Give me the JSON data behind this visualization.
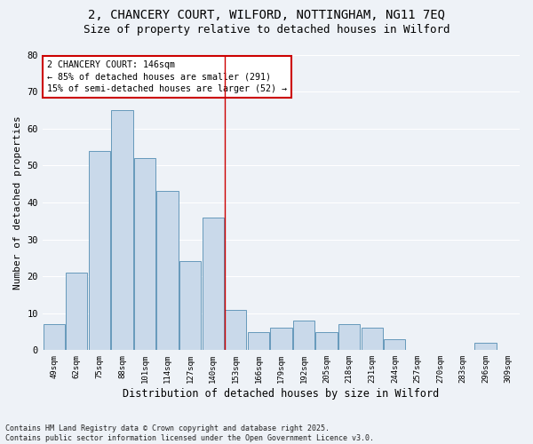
{
  "title": "2, CHANCERY COURT, WILFORD, NOTTINGHAM, NG11 7EQ",
  "subtitle": "Size of property relative to detached houses in Wilford",
  "xlabel": "Distribution of detached houses by size in Wilford",
  "ylabel": "Number of detached properties",
  "categories": [
    "49sqm",
    "62sqm",
    "75sqm",
    "88sqm",
    "101sqm",
    "114sqm",
    "127sqm",
    "140sqm",
    "153sqm",
    "166sqm",
    "179sqm",
    "192sqm",
    "205sqm",
    "218sqm",
    "231sqm",
    "244sqm",
    "257sqm",
    "270sqm",
    "283sqm",
    "296sqm",
    "309sqm"
  ],
  "values": [
    7,
    21,
    54,
    65,
    52,
    43,
    24,
    36,
    11,
    5,
    6,
    8,
    5,
    7,
    6,
    3,
    0,
    0,
    0,
    2,
    0
  ],
  "bar_color": "#c9d9ea",
  "bar_edge_color": "#6699bb",
  "red_line_x": 7.5,
  "annotation_line1": "2 CHANCERY COURT: 146sqm",
  "annotation_line2": "← 85% of detached houses are smaller (291)",
  "annotation_line3": "15% of semi-detached houses are larger (52) →",
  "annotation_box_color": "#ffffff",
  "annotation_box_edge": "#cc0000",
  "background_color": "#eef2f7",
  "grid_color": "#ffffff",
  "ylim": [
    0,
    80
  ],
  "yticks": [
    0,
    10,
    20,
    30,
    40,
    50,
    60,
    70,
    80
  ],
  "footer": "Contains HM Land Registry data © Crown copyright and database right 2025.\nContains public sector information licensed under the Open Government Licence v3.0.",
  "title_fontsize": 10,
  "subtitle_fontsize": 9,
  "ylabel_fontsize": 8,
  "xlabel_fontsize": 8.5
}
